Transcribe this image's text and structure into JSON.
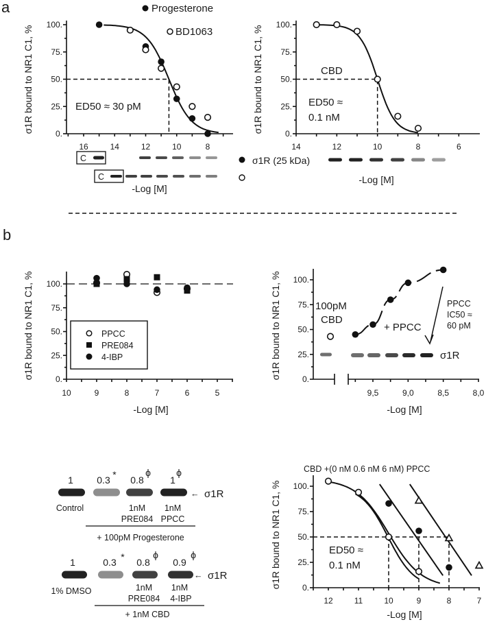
{
  "panels": {
    "a": "a",
    "b": "b"
  },
  "chart_data": [
    {
      "id": "a1",
      "type": "scatter",
      "ylabel": "σ1R bound to NR1 C1, %",
      "xlabel": "-Log [M]",
      "xlim": [
        17,
        7
      ],
      "ylim": [
        0,
        100
      ],
      "xticks": [
        "16",
        "14",
        "12",
        "10",
        "8"
      ],
      "yticks": [
        "0.",
        "25.",
        "50.",
        "75.",
        "100."
      ],
      "series": [
        {
          "name": "Progesterone",
          "marker": "filled-circle",
          "x": [
            15,
            12,
            11,
            10,
            9,
            8
          ],
          "y": [
            100,
            80,
            66,
            32,
            14,
            0
          ]
        },
        {
          "name": "BD1063",
          "marker": "open-circle",
          "x": [
            13,
            12,
            11,
            10,
            9,
            8
          ],
          "y": [
            95,
            77,
            60,
            43,
            25,
            15
          ]
        }
      ],
      "fit": {
        "pED50": 10.5,
        "hill": 0.6,
        "range": [
          14.7,
          7.3
        ]
      },
      "annotation": "ED50 ≈ 30 pM",
      "gel": {
        "control_label": "C",
        "band_label": "σ1R (25 kDa)"
      }
    },
    {
      "id": "a2",
      "type": "scatter",
      "ylabel": "σ1R bound to NR1 C1, %",
      "xlabel": "-Log [M]",
      "xlim": [
        14,
        6
      ],
      "ylim": [
        0,
        100
      ],
      "xticks": [
        "14",
        "12",
        "10",
        "8",
        "6"
      ],
      "yticks": [
        "0.",
        "25.",
        "50.",
        "75.",
        "100."
      ],
      "series": [
        {
          "name": "CBD",
          "marker": "open-circle",
          "x": [
            13,
            12,
            11,
            10,
            9,
            8
          ],
          "y": [
            100,
            100,
            94,
            50,
            16,
            5
          ]
        }
      ],
      "fit": {
        "pED50": 10,
        "hill": 1,
        "range": [
          13,
          8
        ]
      },
      "annotation": [
        "ED50 ≈",
        "0.1 nM"
      ],
      "label": "CBD"
    },
    {
      "id": "b1",
      "type": "scatter",
      "ylabel": "σ1R bound to NR1 C1, %",
      "xlabel": "-Log [M]",
      "xlim": [
        10,
        4.5
      ],
      "ylim": [
        0,
        113
      ],
      "xticks": [
        "10",
        "9",
        "8",
        "7",
        "6",
        "5"
      ],
      "yticks": [
        "0.",
        "25.",
        "50.",
        "75.",
        "100."
      ],
      "reference_line": 100,
      "legend": {
        "placement": "lower-left",
        "entries": [
          "PPCC",
          "PRE084",
          "4-IBP"
        ]
      },
      "series": [
        {
          "name": "PPCC",
          "marker": "open-circle",
          "x": [
            9,
            8,
            7,
            6
          ],
          "y": [
            101,
            110,
            91,
            95
          ]
        },
        {
          "name": "PRE084",
          "marker": "filled-square",
          "x": [
            9,
            8,
            7,
            6
          ],
          "y": [
            100,
            105,
            107,
            93
          ]
        },
        {
          "name": "4-IBP",
          "marker": "filled-circle",
          "x": [
            9,
            8,
            7,
            6
          ],
          "y": [
            106,
            100,
            94,
            96
          ]
        }
      ]
    },
    {
      "id": "b2",
      "type": "line",
      "ylabel": "σ1R bound to NR1 C1, %",
      "xlabel": "-Log [M]",
      "xlim": [
        10,
        8.0
      ],
      "ylim": [
        0,
        113
      ],
      "xticks": [
        "9,5",
        "9,0",
        "8,5",
        "8,0"
      ],
      "yticks": [
        "0.",
        "25.",
        "50.",
        "75.",
        "100."
      ],
      "series": [
        {
          "name": "100pM CBD",
          "marker": "open-circle",
          "x": [
            "CBD alone"
          ],
          "y": [
            43
          ]
        },
        {
          "name": "+ PPCC",
          "marker": "filled-circle",
          "x": [
            9.75,
            9.5,
            9.25,
            9.0,
            8.5
          ],
          "y": [
            45,
            55,
            80,
            97,
            110
          ]
        }
      ],
      "labels": {
        "cbd": [
          "100pM",
          "CBD"
        ],
        "ppcc": "+ PPCC",
        "ic50": [
          "PPCC",
          "IC50 ≈",
          "60 pM"
        ],
        "band": "σ1R"
      }
    },
    {
      "id": "b3",
      "type": "scatter",
      "title": "CBD +(0 nM  0.6 nM  6 nM) PPCC",
      "ylabel": "σ1R bound to NR1 C1, %",
      "xlabel": "-Log [M]",
      "xlim": [
        12.5,
        7
      ],
      "ylim": [
        0,
        110
      ],
      "xticks": [
        "12",
        "11",
        "10",
        "9",
        "8",
        "7"
      ],
      "yticks": [
        "0.",
        "25.",
        "50.",
        "75.",
        "100."
      ],
      "series": [
        {
          "name": "0 nM PPCC",
          "marker": "open-circle",
          "x": [
            12,
            11,
            10,
            9
          ],
          "y": [
            105,
            94,
            50,
            16
          ]
        },
        {
          "name": "0.6 nM PPCC",
          "marker": "filled-circle",
          "x": [
            10,
            9,
            8
          ],
          "y": [
            83,
            56,
            20
          ]
        },
        {
          "name": "6 nM PPCC",
          "marker": "open-triangle",
          "x": [
            9,
            8,
            7
          ],
          "y": [
            86,
            49,
            22
          ]
        }
      ],
      "ed50_markers": [
        10,
        9,
        8
      ],
      "annotation": [
        "ED50 ≈",
        "0.1 nM"
      ]
    }
  ],
  "blots": {
    "progesterone": {
      "values": [
        "1",
        "0.3",
        "0.8",
        "1"
      ],
      "marks": [
        "",
        "*",
        "ϕ",
        "ϕ"
      ],
      "labels_top": [
        "Control",
        "",
        "1nM",
        "1nM"
      ],
      "labels_bottom": [
        "",
        "",
        "PRE084",
        "PPCC"
      ],
      "condition": "+ 100pM Progesterone",
      "band_label": "σ1R",
      "intensity": [
        1,
        0.3,
        0.8,
        1
      ]
    },
    "cbd": {
      "values": [
        "1",
        "0.3",
        "0.8",
        "0.9"
      ],
      "marks": [
        "",
        "*",
        "ϕ",
        "ϕ"
      ],
      "labels_top": [
        "1% DMSO",
        "",
        "1nM",
        "1nM"
      ],
      "labels_bottom": [
        "",
        "",
        "PRE084",
        "4-IBP"
      ],
      "condition": "+ 1nM CBD",
      "band_label": "σ1R",
      "intensity": [
        1,
        0.3,
        0.8,
        0.9
      ]
    }
  }
}
